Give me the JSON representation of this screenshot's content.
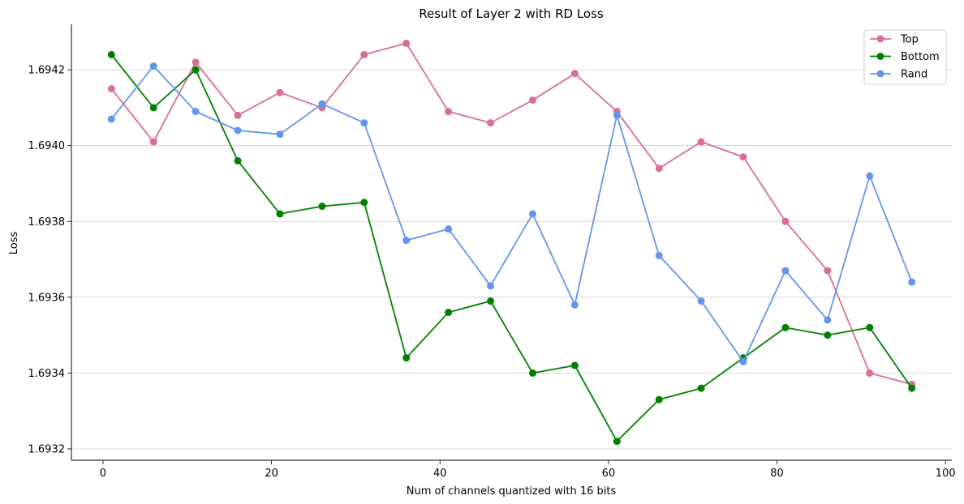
{
  "chart_data": {
    "type": "line",
    "title": "Result of Layer 2 with RD Loss",
    "xlabel": "Num of channels quantized with 16 bits",
    "ylabel": "Loss",
    "xlim": [
      -3.75,
      100.75
    ],
    "ylim": [
      1.69317,
      1.69432
    ],
    "xticks": [
      0,
      20,
      40,
      60,
      80,
      100
    ],
    "yticks": [
      1.6932,
      1.6934,
      1.6936,
      1.6938,
      1.694,
      1.6942
    ],
    "ytick_labels": [
      "1.6932",
      "1.6934",
      "1.6936",
      "1.6938",
      "1.6940",
      "1.6942"
    ],
    "grid": "horizontal",
    "legend_position": "top-right",
    "x": [
      1,
      6,
      11,
      16,
      21,
      26,
      31,
      36,
      41,
      46,
      51,
      56,
      61,
      66,
      71,
      76,
      81,
      86,
      91,
      96
    ],
    "series": [
      {
        "name": "Top",
        "color": "#d87093",
        "values": [
          1.69415,
          1.69401,
          1.69422,
          1.69408,
          1.69414,
          1.6941,
          1.69424,
          1.69427,
          1.69409,
          1.69406,
          1.69412,
          1.69419,
          1.69409,
          1.69394,
          1.69401,
          1.69397,
          1.6938,
          1.69367,
          1.6934,
          1.69337
        ]
      },
      {
        "name": "Bottom",
        "color": "#008000",
        "values": [
          1.69424,
          1.6941,
          1.6942,
          1.69396,
          1.69382,
          1.69384,
          1.69385,
          1.69344,
          1.69356,
          1.69359,
          1.6934,
          1.69342,
          1.69322,
          1.69333,
          1.69336,
          1.69344,
          1.69352,
          1.6935,
          1.69352,
          1.69336
        ]
      },
      {
        "name": "Rand",
        "color": "#6495ed",
        "values": [
          1.69407,
          1.69421,
          1.69409,
          1.69404,
          1.69403,
          1.69411,
          1.69406,
          1.69375,
          1.69378,
          1.69363,
          1.69382,
          1.69358,
          1.69408,
          1.69371,
          1.69359,
          1.69343,
          1.69367,
          1.69354,
          1.69392,
          1.69364
        ]
      }
    ]
  }
}
